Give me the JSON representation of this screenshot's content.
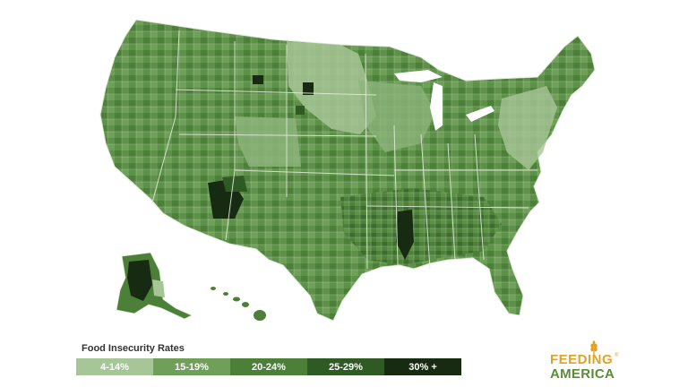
{
  "legend": {
    "title": "Food Insecurity Rates",
    "bins": [
      {
        "label": "4-14%",
        "color": "#a7c697"
      },
      {
        "label": "15-19%",
        "color": "#6f9f58"
      },
      {
        "label": "20-24%",
        "color": "#4c7f38"
      },
      {
        "label": "25-29%",
        "color": "#2f5a24"
      },
      {
        "label": "30% +",
        "color": "#172b12"
      }
    ]
  },
  "brand": {
    "line1": "FEEDING",
    "line2": "AMERICA",
    "mark": "®",
    "colors": {
      "gold": "#e4a225",
      "green": "#5a8c3a"
    }
  },
  "map": {
    "regions": [
      "contiguous-us",
      "alaska",
      "hawaii"
    ],
    "border_color": "#dfe9d8"
  }
}
